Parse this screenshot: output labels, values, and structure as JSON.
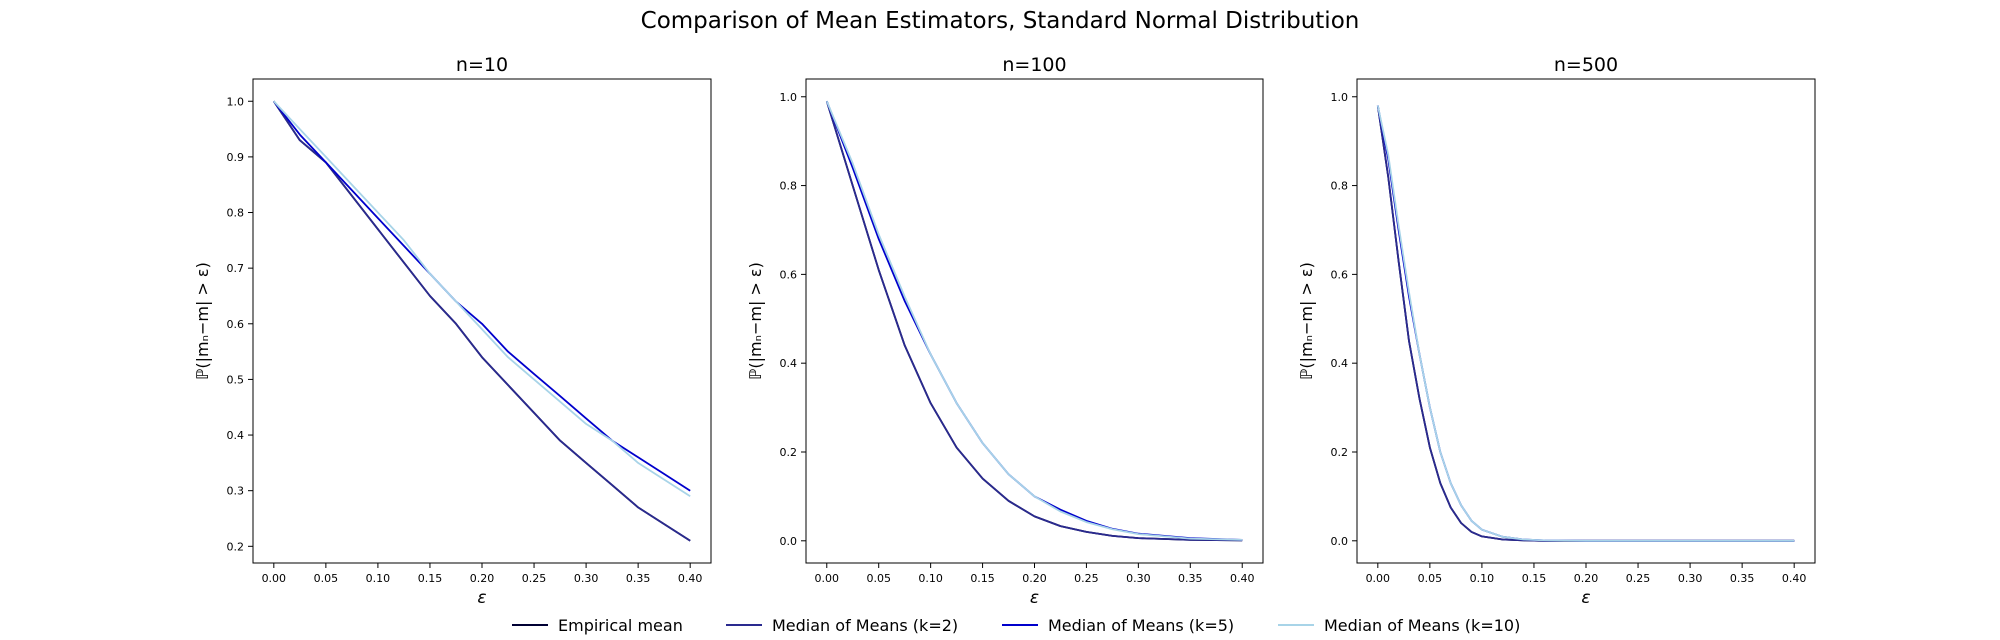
{
  "suptitle": "Comparison of Mean Estimators, Standard Normal Distribution",
  "legend": [
    {
      "name": "Empirical mean",
      "color": "#000033"
    },
    {
      "name": "Median of Means (k=2)",
      "color": "#2a2a8f"
    },
    {
      "name": "Median of Means (k=5)",
      "color": "#0000cc"
    },
    {
      "name": "Median of Means (k=10)",
      "color": "#a8d4e8"
    }
  ],
  "chart_data": [
    {
      "type": "line",
      "title": "n=10",
      "xlabel": "ε",
      "ylabel": "ℙ(|mₙ−m| > ε)",
      "xlim": [
        -0.02,
        0.42
      ],
      "ylim": [
        0.17,
        1.04
      ],
      "xticks": [
        0.0,
        0.05,
        0.1,
        0.15,
        0.2,
        0.25,
        0.3,
        0.35,
        0.4
      ],
      "xtick_labels": [
        "0.00",
        "0.05",
        "0.10",
        "0.15",
        "0.20",
        "0.25",
        "0.30",
        "0.35",
        "0.40"
      ],
      "yticks": [
        0.2,
        0.3,
        0.4,
        0.5,
        0.6,
        0.7,
        0.8,
        0.9,
        1.0
      ],
      "ytick_labels": [
        "0.2",
        "0.3",
        "0.4",
        "0.5",
        "0.6",
        "0.7",
        "0.8",
        "0.9",
        "1.0"
      ],
      "x": [
        0.0,
        0.025,
        0.05,
        0.075,
        0.1,
        0.125,
        0.15,
        0.175,
        0.2,
        0.225,
        0.25,
        0.275,
        0.3,
        0.325,
        0.35,
        0.375,
        0.4
      ],
      "series": [
        {
          "name": "Empirical mean",
          "color": "#000033",
          "values": [
            1.0,
            0.93,
            0.89,
            0.83,
            0.77,
            0.71,
            0.65,
            0.6,
            0.54,
            0.49,
            0.44,
            0.39,
            0.35,
            0.31,
            0.27,
            0.24,
            0.21
          ]
        },
        {
          "name": "Median of Means (k=2)",
          "color": "#2a2a8f",
          "values": [
            1.0,
            0.93,
            0.89,
            0.83,
            0.77,
            0.71,
            0.65,
            0.6,
            0.54,
            0.49,
            0.44,
            0.39,
            0.35,
            0.31,
            0.27,
            0.24,
            0.21
          ]
        },
        {
          "name": "Median of Means (k=5)",
          "color": "#0000cc",
          "values": [
            1.0,
            0.94,
            0.89,
            0.84,
            0.79,
            0.74,
            0.69,
            0.64,
            0.6,
            0.55,
            0.51,
            0.47,
            0.43,
            0.39,
            0.36,
            0.33,
            0.3
          ]
        },
        {
          "name": "Median of Means (k=10)",
          "color": "#a8d4e8",
          "values": [
            1.0,
            0.95,
            0.9,
            0.85,
            0.8,
            0.75,
            0.69,
            0.64,
            0.59,
            0.54,
            0.5,
            0.46,
            0.42,
            0.39,
            0.35,
            0.32,
            0.29
          ]
        }
      ]
    },
    {
      "type": "line",
      "title": "n=100",
      "xlabel": "ε",
      "ylabel": "ℙ(|mₙ−m| > ε)",
      "xlim": [
        -0.02,
        0.42
      ],
      "ylim": [
        -0.05,
        1.04
      ],
      "xticks": [
        0.0,
        0.05,
        0.1,
        0.15,
        0.2,
        0.25,
        0.3,
        0.35,
        0.4
      ],
      "xtick_labels": [
        "0.00",
        "0.05",
        "0.10",
        "0.15",
        "0.20",
        "0.25",
        "0.30",
        "0.35",
        "0.40"
      ],
      "yticks": [
        0.0,
        0.2,
        0.4,
        0.6,
        0.8,
        1.0
      ],
      "ytick_labels": [
        "0.0",
        "0.2",
        "0.4",
        "0.6",
        "0.8",
        "1.0"
      ],
      "x": [
        0.0,
        0.025,
        0.05,
        0.075,
        0.1,
        0.125,
        0.15,
        0.175,
        0.2,
        0.225,
        0.25,
        0.275,
        0.3,
        0.35,
        0.4
      ],
      "series": [
        {
          "name": "Empirical mean",
          "color": "#000033",
          "values": [
            0.99,
            0.8,
            0.61,
            0.44,
            0.31,
            0.21,
            0.14,
            0.09,
            0.055,
            0.033,
            0.02,
            0.011,
            0.006,
            0.002,
            0.001
          ]
        },
        {
          "name": "Median of Means (k=2)",
          "color": "#2a2a8f",
          "values": [
            0.99,
            0.8,
            0.61,
            0.44,
            0.31,
            0.21,
            0.14,
            0.09,
            0.055,
            0.033,
            0.02,
            0.011,
            0.006,
            0.002,
            0.001
          ]
        },
        {
          "name": "Median of Means (k=5)",
          "color": "#0000cc",
          "values": [
            0.99,
            0.84,
            0.68,
            0.54,
            0.42,
            0.31,
            0.22,
            0.15,
            0.1,
            0.07,
            0.045,
            0.027,
            0.016,
            0.006,
            0.002
          ]
        },
        {
          "name": "Median of Means (k=10)",
          "color": "#a8d4e8",
          "values": [
            0.99,
            0.85,
            0.69,
            0.55,
            0.42,
            0.31,
            0.22,
            0.15,
            0.1,
            0.066,
            0.042,
            0.026,
            0.015,
            0.005,
            0.002
          ]
        }
      ]
    },
    {
      "type": "line",
      "title": "n=500",
      "xlabel": "ε",
      "ylabel": "ℙ(|mₙ−m| > ε)",
      "xlim": [
        -0.02,
        0.42
      ],
      "ylim": [
        -0.05,
        1.04
      ],
      "xticks": [
        0.0,
        0.05,
        0.1,
        0.15,
        0.2,
        0.25,
        0.3,
        0.35,
        0.4
      ],
      "xtick_labels": [
        "0.00",
        "0.05",
        "0.10",
        "0.15",
        "0.20",
        "0.25",
        "0.30",
        "0.35",
        "0.40"
      ],
      "yticks": [
        0.0,
        0.2,
        0.4,
        0.6,
        0.8,
        1.0
      ],
      "ytick_labels": [
        "0.0",
        "0.2",
        "0.4",
        "0.6",
        "0.8",
        "1.0"
      ],
      "x": [
        0.0,
        0.01,
        0.02,
        0.03,
        0.04,
        0.05,
        0.06,
        0.07,
        0.08,
        0.09,
        0.1,
        0.12,
        0.14,
        0.16,
        0.2,
        0.25,
        0.3,
        0.35,
        0.4
      ],
      "series": [
        {
          "name": "Empirical mean",
          "color": "#000033",
          "values": [
            0.98,
            0.82,
            0.63,
            0.45,
            0.32,
            0.21,
            0.13,
            0.075,
            0.04,
            0.02,
            0.01,
            0.003,
            0.001,
            0.0,
            0.0,
            0.0,
            0.0,
            0.0,
            0.0
          ]
        },
        {
          "name": "Median of Means (k=2)",
          "color": "#2a2a8f",
          "values": [
            0.98,
            0.82,
            0.63,
            0.45,
            0.32,
            0.21,
            0.13,
            0.075,
            0.04,
            0.02,
            0.01,
            0.003,
            0.001,
            0.0,
            0.0,
            0.0,
            0.0,
            0.0,
            0.0
          ]
        },
        {
          "name": "Median of Means (k=5)",
          "color": "#0000cc",
          "values": [
            0.98,
            0.86,
            0.7,
            0.55,
            0.42,
            0.3,
            0.2,
            0.13,
            0.08,
            0.045,
            0.025,
            0.009,
            0.003,
            0.001,
            0.0,
            0.0,
            0.0,
            0.0,
            0.0
          ]
        },
        {
          "name": "Median of Means (k=10)",
          "color": "#a8d4e8",
          "values": [
            0.98,
            0.87,
            0.71,
            0.56,
            0.42,
            0.3,
            0.2,
            0.13,
            0.08,
            0.045,
            0.025,
            0.009,
            0.003,
            0.001,
            0.0,
            0.0,
            0.0,
            0.0,
            0.0
          ]
        }
      ]
    }
  ]
}
